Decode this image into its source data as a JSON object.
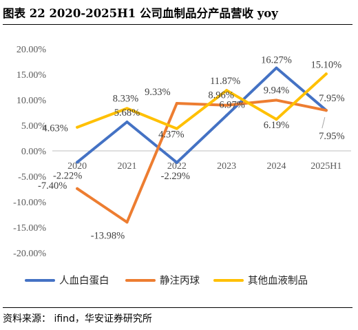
{
  "title": "图表 22  2020-2025H1 公司血制品分产品营收 yoy",
  "source": "资料来源：  ifind，华安证券研究所",
  "chart_data": {
    "type": "line",
    "categories": [
      "2020",
      "2021",
      "2022",
      "2023",
      "2024",
      "2025H1"
    ],
    "y_ticks": [
      "20.00%",
      "15.00%",
      "10.00%",
      "5.00%",
      "0.00%",
      "-5.00%",
      "-10.00%",
      "-15.00%",
      "-20.00%"
    ],
    "ylim": [
      -20,
      20
    ],
    "legend_position": "bottom",
    "series": [
      {
        "name": "人血白蛋白",
        "color": "#4472C4",
        "values": [
          -2.22,
          5.68,
          -2.29,
          6.97,
          16.27,
          7.95
        ],
        "labels": [
          "-2.22%",
          "5.68%",
          "-2.29%",
          "6.97%",
          "16.27%",
          "7.95%"
        ]
      },
      {
        "name": "静注丙球",
        "color": "#ED7D31",
        "values": [
          -7.4,
          -13.98,
          9.33,
          8.96,
          9.94,
          7.95
        ],
        "labels": [
          "-7.40%",
          "-13.98%",
          "9.33%",
          "8.96%",
          "9.94%",
          "7.95%"
        ]
      },
      {
        "name": "其他血液制品",
        "color": "#FFC000",
        "values": [
          4.63,
          8.33,
          4.37,
          11.87,
          6.19,
          15.1
        ],
        "labels": [
          "4.63%",
          "8.33%",
          "4.37%",
          "11.87%",
          "6.19%",
          "15.10%"
        ]
      }
    ]
  }
}
